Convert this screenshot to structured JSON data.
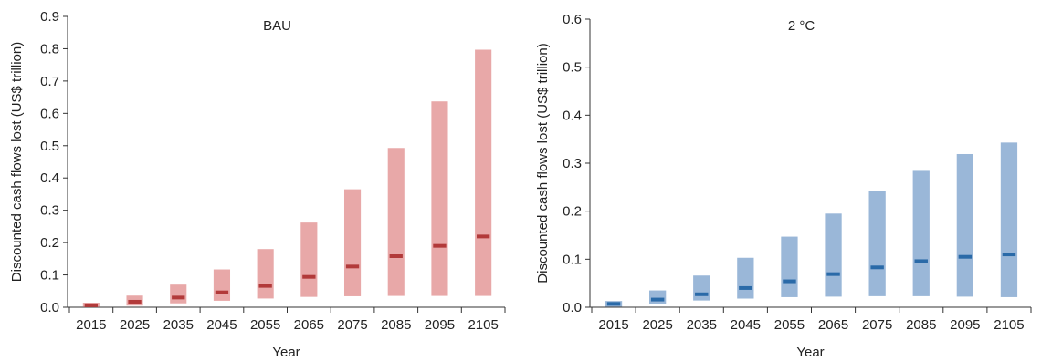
{
  "chart_data": [
    {
      "type": "bar",
      "title": "BAU",
      "xlabel": "Year",
      "ylabel": "Discounted cash flows lost (US$ trillion)",
      "ylim": [
        0,
        0.9
      ],
      "yticks": [
        "0.0",
        "0.1",
        "0.2",
        "0.3",
        "0.4",
        "0.5",
        "0.6",
        "0.7",
        "0.8",
        "0.9"
      ],
      "categories": [
        "2015",
        "2025",
        "2035",
        "2045",
        "2055",
        "2065",
        "2075",
        "2085",
        "2095",
        "2105"
      ],
      "range_low": [
        0.001,
        0.005,
        0.012,
        0.02,
        0.027,
        0.032,
        0.034,
        0.035,
        0.035,
        0.035
      ],
      "range_high": [
        0.014,
        0.036,
        0.07,
        0.117,
        0.18,
        0.262,
        0.365,
        0.493,
        0.637,
        0.797
      ],
      "median": [
        0.006,
        0.017,
        0.03,
        0.046,
        0.066,
        0.094,
        0.126,
        0.158,
        0.19,
        0.219
      ],
      "colors": {
        "range": "#e8a8a8",
        "median": "#b23a3a"
      },
      "grid": false
    },
    {
      "type": "bar",
      "title": "2 °C",
      "xlabel": "Year",
      "ylabel": "Discounted cash flows lost (US$ trillion)",
      "ylim": [
        0,
        0.6
      ],
      "yticks": [
        "0.0",
        "0.1",
        "0.2",
        "0.3",
        "0.4",
        "0.5",
        "0.6"
      ],
      "categories": [
        "2015",
        "2025",
        "2035",
        "2045",
        "2055",
        "2065",
        "2075",
        "2085",
        "2095",
        "2105"
      ],
      "range_low": [
        0.001,
        0.006,
        0.014,
        0.018,
        0.021,
        0.022,
        0.023,
        0.023,
        0.022,
        0.021
      ],
      "range_high": [
        0.013,
        0.035,
        0.066,
        0.103,
        0.147,
        0.195,
        0.242,
        0.284,
        0.319,
        0.343
      ],
      "median": [
        0.007,
        0.016,
        0.027,
        0.04,
        0.054,
        0.069,
        0.083,
        0.096,
        0.105,
        0.11
      ],
      "colors": {
        "range": "#9ab7d8",
        "median": "#2a6aa8"
      },
      "grid": false
    }
  ]
}
